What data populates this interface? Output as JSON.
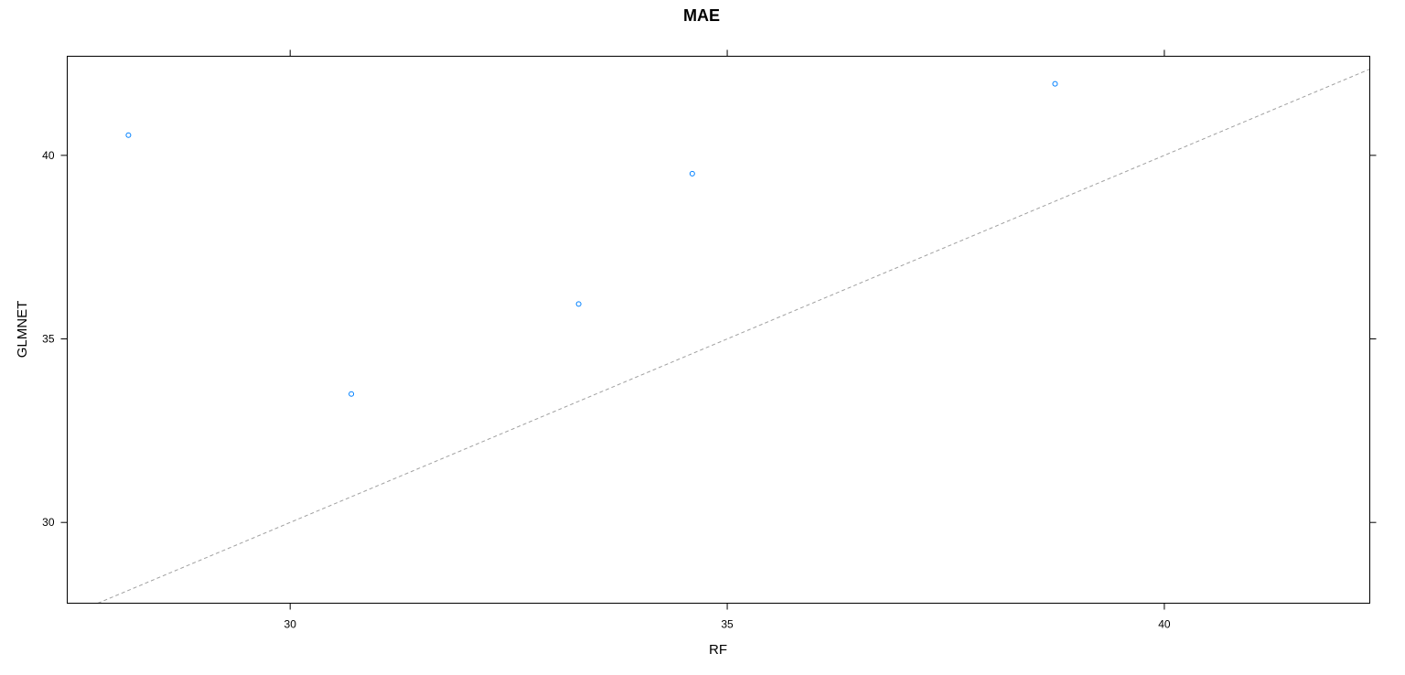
{
  "chart_data": {
    "type": "scatter",
    "title": "MAE",
    "xlabel": "RF",
    "ylabel": "GLMNET",
    "xlim": [
      27.45,
      42.35
    ],
    "ylim": [
      27.8,
      42.7
    ],
    "xticks": [
      30,
      35,
      40
    ],
    "yticks": [
      30,
      35,
      40
    ],
    "x_tick_labels": [
      "30",
      "35",
      "40"
    ],
    "y_tick_labels": [
      "30",
      "35",
      "40"
    ],
    "grid": false,
    "legend": "none",
    "reference_line": {
      "type": "identity",
      "style": "dashed",
      "color": "#a0a0a0"
    },
    "series": [
      {
        "color": "#0080ff",
        "points": [
          {
            "x": 28.15,
            "y": 40.55
          },
          {
            "x": 30.7,
            "y": 33.5
          },
          {
            "x": 33.3,
            "y": 35.95
          },
          {
            "x": 34.6,
            "y": 39.5
          },
          {
            "x": 38.75,
            "y": 41.95
          }
        ]
      }
    ]
  }
}
